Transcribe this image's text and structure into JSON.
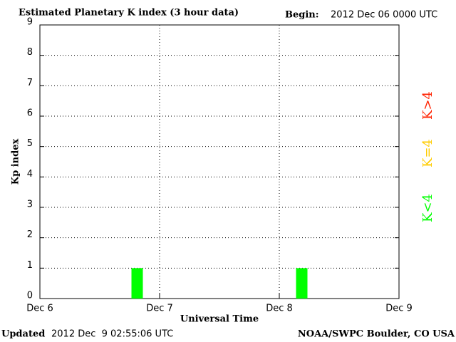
{
  "chart_data": {
    "type": "bar",
    "title": "Estimated Planetary K index (3 hour data)",
    "begin_label": "Begin:",
    "begin": "2012 Dec 06 0000 UTC",
    "y_label": "Kp index",
    "x_label": "Universal Time",
    "updated_label": "Updated",
    "updated": "2012 Dec  9 02:55:06 UTC",
    "source": "NOAA/SWPC Boulder, CO USA",
    "categories": [
      null,
      null,
      null,
      null,
      null,
      null,
      null,
      null,
      null,
      null,
      null,
      null,
      null,
      null,
      null,
      null,
      null,
      null,
      null,
      null,
      null,
      null,
      null,
      null
    ],
    "values": [
      0,
      0,
      0,
      0,
      0,
      0,
      1,
      0,
      0,
      0,
      0,
      0,
      0,
      0,
      0,
      0,
      0,
      1,
      0,
      0,
      0,
      0,
      0,
      0
    ],
    "color": "#00ff00",
    "x_day_labels": [
      "Dec 6",
      "Dec 7",
      "Dec 8",
      "Dec 9"
    ],
    "ylim": [
      0,
      9
    ],
    "yticks": [
      0,
      1,
      2,
      3,
      4,
      5,
      6,
      7,
      8,
      9
    ],
    "grid": true,
    "legend": [
      {
        "name": "K<4",
        "color": "#00ff00"
      },
      {
        "name": "K=4",
        "color": "#ffcc00"
      },
      {
        "name": "K>4",
        "color": "#ff2200"
      }
    ]
  }
}
